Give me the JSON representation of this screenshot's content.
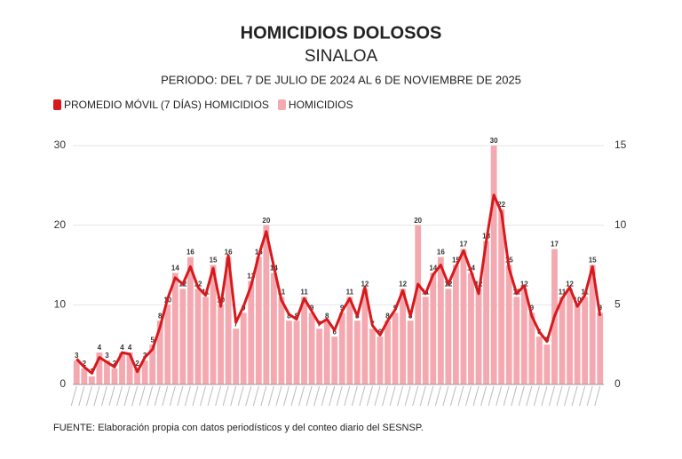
{
  "chart_data": {
    "type": "bar-line",
    "title": "HOMICIDIOS DOLOSOS",
    "subtitle": "SINALOA",
    "period": "PERIODO: DEL 7 DE JULIO DE 2024 AL 6 DE NOVIEMBRE DE 2025",
    "source": "FUENTE: Elaboración propia con datos periodísticos y del conteo diario del SESNSP.",
    "categories": [
      null,
      null,
      null,
      null,
      null,
      null,
      null,
      null,
      null,
      null,
      null,
      null,
      null,
      null,
      null,
      null,
      null,
      null,
      null,
      null,
      null,
      null,
      null,
      null,
      null,
      null,
      null,
      null,
      null,
      null,
      null,
      null,
      null,
      null,
      null,
      null,
      null,
      null,
      null,
      null,
      null,
      null,
      null,
      null,
      null,
      null,
      null,
      null,
      null,
      null,
      null,
      null,
      null,
      null,
      null,
      null,
      null,
      null,
      null,
      null,
      null,
      null,
      null,
      null,
      null,
      null,
      null,
      null,
      null,
      null
    ],
    "series": [
      {
        "name": "PROMEDIO MÓVIL (7 DÍAS) HOMICIDIOS",
        "color": "#d7191c",
        "kind": "line",
        "axis": "y2",
        "values": [
          1.6,
          1.1,
          0.7,
          1.7,
          1.4,
          1.1,
          2.0,
          1.9,
          0.8,
          1.7,
          2.2,
          3.6,
          5.4,
          6.7,
          6.3,
          7.4,
          6.1,
          5.6,
          7.3,
          4.9,
          8.1,
          3.9,
          4.9,
          6.2,
          8.1,
          9.6,
          7.4,
          5.3,
          4.4,
          4.1,
          5.4,
          4.6,
          3.8,
          4.1,
          3.4,
          4.6,
          5.4,
          4.3,
          6.1,
          3.7,
          3.1,
          4.0,
          4.7,
          5.9,
          4.3,
          6.3,
          5.7,
          6.9,
          7.5,
          6.3,
          7.4,
          8.4,
          7.1,
          5.7,
          9.0,
          11.9,
          10.8,
          7.3,
          5.7,
          6.2,
          4.3,
          3.3,
          2.7,
          4.3,
          5.4,
          6.1,
          4.9,
          5.6,
          7.4,
          4.3
        ]
      },
      {
        "name": "HOMICIDIOS",
        "color": "#f4a9b0",
        "kind": "bar",
        "values": [
          3,
          2,
          1,
          4,
          3,
          2,
          4,
          4,
          2,
          3,
          5,
          8,
          10,
          14,
          12,
          16,
          12,
          11,
          15,
          10,
          16,
          7,
          9,
          13,
          16,
          20,
          14,
          11,
          8,
          8,
          11,
          9,
          7,
          8,
          6,
          9,
          11,
          8,
          12,
          7,
          6,
          8,
          9,
          12,
          8,
          20,
          11,
          14,
          16,
          12,
          15,
          17,
          14,
          12,
          18,
          30,
          22,
          15,
          11,
          12,
          9,
          6,
          5,
          17,
          11,
          12,
          10,
          11,
          15,
          9
        ]
      }
    ],
    "ylim": [
      0,
      30
    ],
    "yticks": [
      0,
      10,
      20,
      30
    ],
    "y2lim": [
      0,
      15
    ],
    "y2ticks": [
      0,
      5,
      10,
      15
    ],
    "grid": true
  }
}
